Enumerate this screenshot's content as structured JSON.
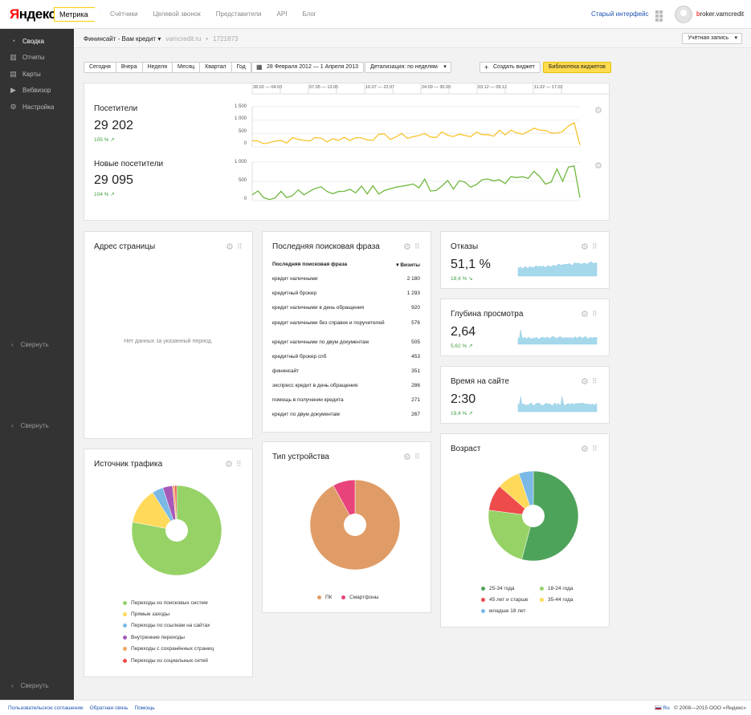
{
  "header": {
    "logo": "Яндекс",
    "product": "Метрика",
    "nav": [
      "Счётчики",
      "Целевой звонок",
      "Представители",
      "API",
      "Блог"
    ],
    "old_ui": "Старый интерфейс",
    "user_first": "b",
    "user_rest": "roker.vamcredit"
  },
  "sidebar": {
    "items": [
      {
        "label": "Сводка",
        "icon": "dashboard-icon"
      },
      {
        "label": "Отчеты",
        "icon": "reports-icon"
      },
      {
        "label": "Карты",
        "icon": "maps-icon"
      },
      {
        "label": "Вебвизор",
        "icon": "webvisor-icon"
      },
      {
        "label": "Настройка",
        "icon": "settings-icon"
      }
    ],
    "collapse": "Свернуть"
  },
  "subbar": {
    "counter_name": "Фининсайт - Вам кредит",
    "site": "vamcredit.ru",
    "id": "1721873",
    "account": "Учётная запись"
  },
  "toolbar": {
    "periods": [
      "Сегодня",
      "Вчера",
      "Неделя",
      "Месяц",
      "Квартал",
      "Год"
    ],
    "date_range": "28 Февраля 2012 — 1 Апреля 2013",
    "detail": "Детализация: по неделям",
    "create": "Создать виджет",
    "library": "Библиотека виджетов"
  },
  "timeline": [
    "28.02 — 04.03",
    "07.05 — 13.05",
    "16.07 — 22.07",
    "24.09 — 30.09",
    "03.12 — 09.12",
    "11.02 — 17.02"
  ],
  "visitors": {
    "title": "Посетители",
    "value": "29 202",
    "pct": "105 %",
    "ticks": [
      "1 500",
      "1 000",
      "500",
      "0"
    ],
    "color": "#f7c42c"
  },
  "new_visitors": {
    "title": "Новые посетители",
    "value": "29 095",
    "pct": "104 %",
    "ticks": [
      "1 000",
      "500",
      "0"
    ],
    "color": "#70b83e"
  },
  "page_address": {
    "title": "Адрес страницы",
    "empty": "Нет данных за указанный период."
  },
  "search_phrase": {
    "title": "Последняя поисковая фраза",
    "col_phrase": "Последняя поисковая фраза",
    "col_visits": "▾ Визиты",
    "rows": [
      [
        "кредит наличными",
        "2 180"
      ],
      [
        "кредитный брокер",
        "1 293"
      ],
      [
        "кредит наличными в день обращения",
        "920"
      ],
      [
        "кредит наличными без справок и поручителей",
        "576"
      ],
      [
        "кредит наличными по двум документам",
        "505"
      ],
      [
        "кредитный брокер спб",
        "453"
      ],
      [
        "фининсайт",
        "351"
      ],
      [
        "экспресс кредит в день обращения",
        "286"
      ],
      [
        "помощь в получении кредита",
        "271"
      ],
      [
        "кредит по двум документам",
        "267"
      ]
    ]
  },
  "bounce": {
    "title": "Отказы",
    "value": "51,1 %",
    "pct": "18,4 %",
    "arrow": "↘"
  },
  "depth": {
    "title": "Глубина просмотра",
    "value": "2,64",
    "pct": "5,62 %",
    "arrow": "↗"
  },
  "time": {
    "title": "Время на сайте",
    "value": "2:30",
    "pct": "19,4 %",
    "arrow": "↗"
  },
  "traffic": {
    "title": "Источник трафика",
    "slices": [
      {
        "label": "Переходы из поисковых систем",
        "value": 78,
        "color": "#96d266"
      },
      {
        "label": "Прямые заходы",
        "value": 13,
        "color": "#ffd95a"
      },
      {
        "label": "Переходы по ссылкам на сайтах",
        "value": 4,
        "color": "#7ab9e6"
      },
      {
        "label": "Внутренние переходы",
        "value": 3.5,
        "color": "#a659b8"
      },
      {
        "label": "Переходы с сохранённых страниц",
        "value": 0.8,
        "color": "#f0a766"
      },
      {
        "label": "Переходы из социальных сетей",
        "value": 0.7,
        "color": "#ee4b4b"
      }
    ]
  },
  "device": {
    "title": "Тип устройства",
    "slices": [
      {
        "label": "ПК",
        "value": 92,
        "color": "#e09c66"
      },
      {
        "label": "Смартфоны",
        "value": 8,
        "color": "#e8437b"
      }
    ]
  },
  "age": {
    "title": "Возраст",
    "slices": [
      {
        "label": "25-34 года",
        "value": 52,
        "color": "#4ea35a"
      },
      {
        "label": "18-24 года",
        "value": 22,
        "color": "#96d266"
      },
      {
        "label": "45 лет и старше",
        "value": 9,
        "color": "#ee4b4b"
      },
      {
        "label": "35-44 года",
        "value": 8,
        "color": "#ffd95a"
      },
      {
        "label": "младше 18 лет",
        "value": 5,
        "color": "#7ab9e6"
      }
    ]
  },
  "footer": {
    "links": [
      "Пользовательское соглашение",
      "Обратная связь",
      "Помощь"
    ],
    "lang": "Ru",
    "copy": "© 2008—2015 ООО «Яндекс»"
  }
}
